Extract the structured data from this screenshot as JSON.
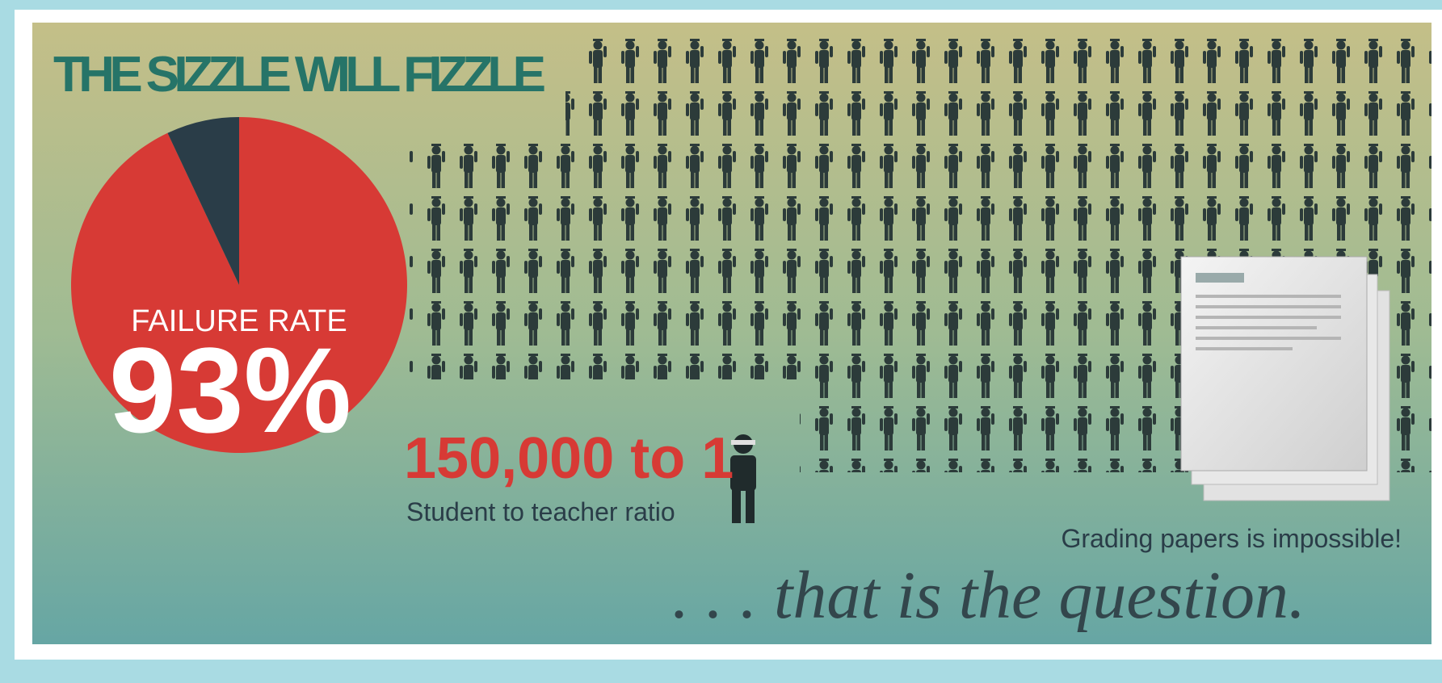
{
  "title": "THE SIZZLE WILL FIZZLE",
  "chart_data": {
    "type": "pie",
    "label": "FAILURE RATE",
    "values": [
      93,
      7
    ],
    "value_labels": [
      "93%",
      null
    ],
    "colors": [
      "#d73a35",
      "#2a3d48"
    ]
  },
  "ratio": {
    "value": "150,000 to 1",
    "caption": "Student to teacher ratio"
  },
  "papers_note": "Grading papers is impossible!",
  "closing": ". . . that is the question."
}
